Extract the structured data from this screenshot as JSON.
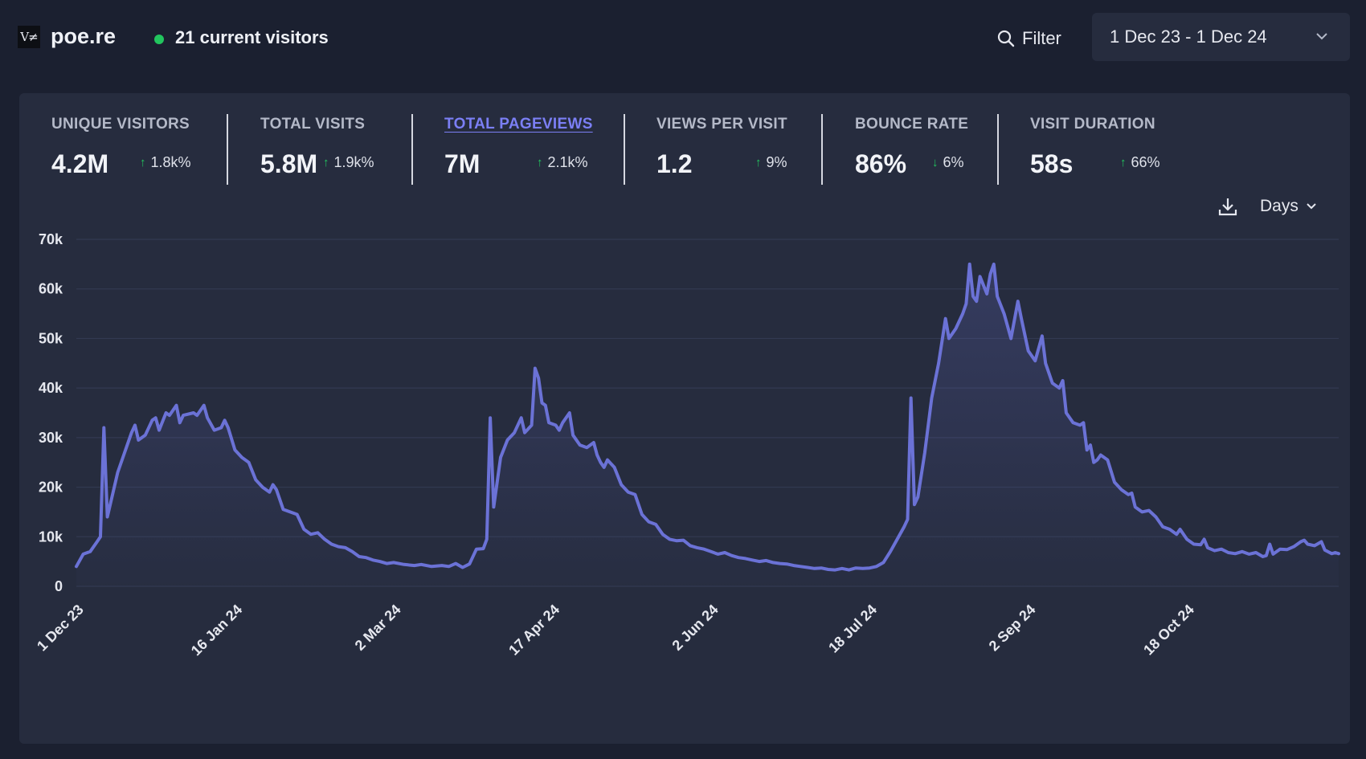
{
  "header": {
    "logo_text": "V≠",
    "site": "poe.re",
    "current_visitors": "21 current visitors",
    "filter_label": "Filter",
    "date_range": "1 Dec 23 - 1 Dec 24"
  },
  "stats": [
    {
      "label": "UNIQUE VISITORS",
      "value": "4.2M",
      "change": "1.8k%",
      "direction": "up",
      "active": false
    },
    {
      "label": "TOTAL VISITS",
      "value": "5.8M",
      "change": "1.9k%",
      "direction": "up",
      "active": false
    },
    {
      "label": "TOTAL PAGEVIEWS",
      "value": "7M",
      "change": "2.1k%",
      "direction": "up",
      "active": true
    },
    {
      "label": "VIEWS PER VISIT",
      "value": "1.2",
      "change": "9%",
      "direction": "up",
      "active": false
    },
    {
      "label": "BOUNCE RATE",
      "value": "86%",
      "change": "6%",
      "direction": "down",
      "active": false
    },
    {
      "label": "VISIT DURATION",
      "value": "58s",
      "change": "66%",
      "direction": "up",
      "active": false
    }
  ],
  "chart_controls": {
    "interval": "Days"
  },
  "colors": {
    "line": "#6b72d6",
    "accent": "#7b7ff5",
    "positive": "#22c55e",
    "background": "#1b2030",
    "panel": "#262c3e"
  },
  "chart_data": {
    "type": "line",
    "title": "Total pageviews",
    "ylim": [
      0,
      70000
    ],
    "yticks": [
      0,
      10000,
      20000,
      30000,
      40000,
      50000,
      60000,
      70000
    ],
    "ytick_labels": [
      "0",
      "10k",
      "20k",
      "30k",
      "40k",
      "50k",
      "60k",
      "70k"
    ],
    "xtick_labels": [
      "1 Dec 23",
      "16 Jan 24",
      "2 Mar 24",
      "17 Apr 24",
      "2 Jun 24",
      "18 Jul 24",
      "2 Sep 24",
      "18 Oct 24"
    ],
    "xtick_days": [
      0,
      46,
      92,
      138,
      184,
      230,
      276,
      322
    ],
    "x_days_total": 366,
    "series": [
      {
        "name": "Pageviews",
        "points": [
          [
            0,
            4000
          ],
          [
            2,
            6500
          ],
          [
            4,
            7000
          ],
          [
            6,
            9000
          ],
          [
            7,
            10000
          ],
          [
            8,
            32000
          ],
          [
            9,
            14000
          ],
          [
            10,
            17000
          ],
          [
            12,
            23000
          ],
          [
            14,
            27000
          ],
          [
            16,
            31000
          ],
          [
            17,
            32500
          ],
          [
            18,
            29500
          ],
          [
            20,
            30500
          ],
          [
            22,
            33500
          ],
          [
            23,
            34000
          ],
          [
            24,
            31500
          ],
          [
            26,
            35000
          ],
          [
            27,
            34500
          ],
          [
            29,
            36500
          ],
          [
            30,
            33000
          ],
          [
            31,
            34500
          ],
          [
            34,
            35000
          ],
          [
            35,
            34500
          ],
          [
            37,
            36500
          ],
          [
            38,
            34000
          ],
          [
            40,
            31500
          ],
          [
            42,
            32000
          ],
          [
            43,
            33500
          ],
          [
            44,
            32000
          ],
          [
            46,
            27500
          ],
          [
            48,
            26000
          ],
          [
            50,
            25000
          ],
          [
            52,
            21500
          ],
          [
            54,
            20000
          ],
          [
            56,
            19000
          ],
          [
            57,
            20500
          ],
          [
            58,
            19500
          ],
          [
            60,
            15500
          ],
          [
            62,
            15000
          ],
          [
            64,
            14500
          ],
          [
            66,
            11500
          ],
          [
            68,
            10500
          ],
          [
            70,
            10800
          ],
          [
            72,
            9500
          ],
          [
            74,
            8500
          ],
          [
            76,
            8000
          ],
          [
            78,
            7800
          ],
          [
            80,
            7000
          ],
          [
            82,
            6000
          ],
          [
            84,
            5800
          ],
          [
            86,
            5300
          ],
          [
            88,
            5000
          ],
          [
            90,
            4600
          ],
          [
            92,
            4800
          ],
          [
            95,
            4400
          ],
          [
            98,
            4200
          ],
          [
            100,
            4400
          ],
          [
            103,
            4000
          ],
          [
            106,
            4200
          ],
          [
            108,
            4000
          ],
          [
            110,
            4600
          ],
          [
            112,
            3800
          ],
          [
            114,
            4500
          ],
          [
            116,
            7500
          ],
          [
            118,
            7600
          ],
          [
            119,
            9500
          ],
          [
            120,
            34000
          ],
          [
            121,
            16000
          ],
          [
            123,
            26000
          ],
          [
            125,
            29500
          ],
          [
            127,
            31000
          ],
          [
            129,
            34000
          ],
          [
            130,
            31000
          ],
          [
            132,
            32500
          ],
          [
            133,
            44000
          ],
          [
            134,
            42000
          ],
          [
            135,
            37000
          ],
          [
            136,
            36500
          ],
          [
            137,
            33000
          ],
          [
            139,
            32500
          ],
          [
            140,
            31500
          ],
          [
            141,
            33000
          ],
          [
            143,
            35000
          ],
          [
            144,
            30500
          ],
          [
            146,
            28500
          ],
          [
            148,
            28000
          ],
          [
            150,
            29000
          ],
          [
            151,
            26500
          ],
          [
            152,
            25000
          ],
          [
            153,
            24000
          ],
          [
            154,
            25500
          ],
          [
            156,
            24000
          ],
          [
            158,
            20500
          ],
          [
            160,
            19000
          ],
          [
            162,
            18500
          ],
          [
            164,
            14500
          ],
          [
            166,
            13000
          ],
          [
            168,
            12500
          ],
          [
            170,
            10500
          ],
          [
            172,
            9500
          ],
          [
            174,
            9200
          ],
          [
            176,
            9300
          ],
          [
            178,
            8200
          ],
          [
            180,
            7800
          ],
          [
            182,
            7500
          ],
          [
            184,
            7000
          ],
          [
            186,
            6500
          ],
          [
            188,
            6800
          ],
          [
            190,
            6200
          ],
          [
            192,
            5800
          ],
          [
            194,
            5600
          ],
          [
            196,
            5300
          ],
          [
            198,
            5000
          ],
          [
            200,
            5200
          ],
          [
            202,
            4800
          ],
          [
            204,
            4600
          ],
          [
            206,
            4500
          ],
          [
            208,
            4200
          ],
          [
            210,
            4000
          ],
          [
            212,
            3800
          ],
          [
            214,
            3600
          ],
          [
            216,
            3700
          ],
          [
            218,
            3400
          ],
          [
            220,
            3300
          ],
          [
            222,
            3600
          ],
          [
            224,
            3300
          ],
          [
            226,
            3700
          ],
          [
            228,
            3600
          ],
          [
            230,
            3700
          ],
          [
            232,
            4000
          ],
          [
            234,
            4800
          ],
          [
            236,
            7000
          ],
          [
            238,
            9500
          ],
          [
            240,
            12000
          ],
          [
            241,
            13500
          ],
          [
            242,
            38000
          ],
          [
            243,
            16500
          ],
          [
            244,
            18000
          ],
          [
            246,
            27000
          ],
          [
            248,
            38000
          ],
          [
            250,
            45000
          ],
          [
            252,
            54000
          ],
          [
            253,
            50000
          ],
          [
            255,
            52000
          ],
          [
            257,
            55000
          ],
          [
            258,
            57000
          ],
          [
            259,
            65000
          ],
          [
            260,
            58500
          ],
          [
            261,
            57500
          ],
          [
            262,
            62500
          ],
          [
            264,
            59000
          ],
          [
            265,
            63000
          ],
          [
            266,
            65000
          ],
          [
            267,
            58500
          ],
          [
            269,
            55000
          ],
          [
            271,
            50000
          ],
          [
            273,
            57500
          ],
          [
            274,
            54000
          ],
          [
            276,
            47500
          ],
          [
            278,
            45500
          ],
          [
            280,
            50500
          ],
          [
            281,
            45000
          ],
          [
            283,
            41000
          ],
          [
            285,
            40000
          ],
          [
            286,
            41500
          ],
          [
            287,
            35000
          ],
          [
            289,
            33000
          ],
          [
            291,
            32500
          ],
          [
            292,
            33000
          ],
          [
            293,
            27500
          ],
          [
            294,
            28500
          ],
          [
            295,
            25000
          ],
          [
            296,
            25500
          ],
          [
            297,
            26500
          ],
          [
            299,
            25500
          ],
          [
            301,
            21000
          ],
          [
            303,
            19500
          ],
          [
            305,
            18500
          ],
          [
            306,
            18800
          ],
          [
            307,
            16000
          ],
          [
            309,
            15000
          ],
          [
            311,
            15300
          ],
          [
            313,
            14000
          ],
          [
            315,
            12000
          ],
          [
            317,
            11500
          ],
          [
            319,
            10500
          ],
          [
            320,
            11500
          ],
          [
            322,
            9500
          ],
          [
            324,
            8500
          ],
          [
            326,
            8400
          ],
          [
            327,
            9500
          ],
          [
            328,
            7800
          ],
          [
            330,
            7200
          ],
          [
            332,
            7500
          ],
          [
            334,
            6800
          ],
          [
            336,
            6600
          ],
          [
            338,
            7000
          ],
          [
            340,
            6500
          ],
          [
            342,
            6800
          ],
          [
            344,
            6000
          ],
          [
            345,
            6200
          ],
          [
            346,
            8500
          ],
          [
            347,
            6500
          ],
          [
            349,
            7500
          ],
          [
            351,
            7400
          ],
          [
            353,
            8000
          ],
          [
            355,
            9000
          ],
          [
            356,
            9300
          ],
          [
            357,
            8500
          ],
          [
            359,
            8200
          ],
          [
            361,
            9000
          ],
          [
            362,
            7300
          ],
          [
            364,
            6600
          ],
          [
            365,
            6800
          ],
          [
            366,
            6600
          ]
        ]
      }
    ]
  }
}
